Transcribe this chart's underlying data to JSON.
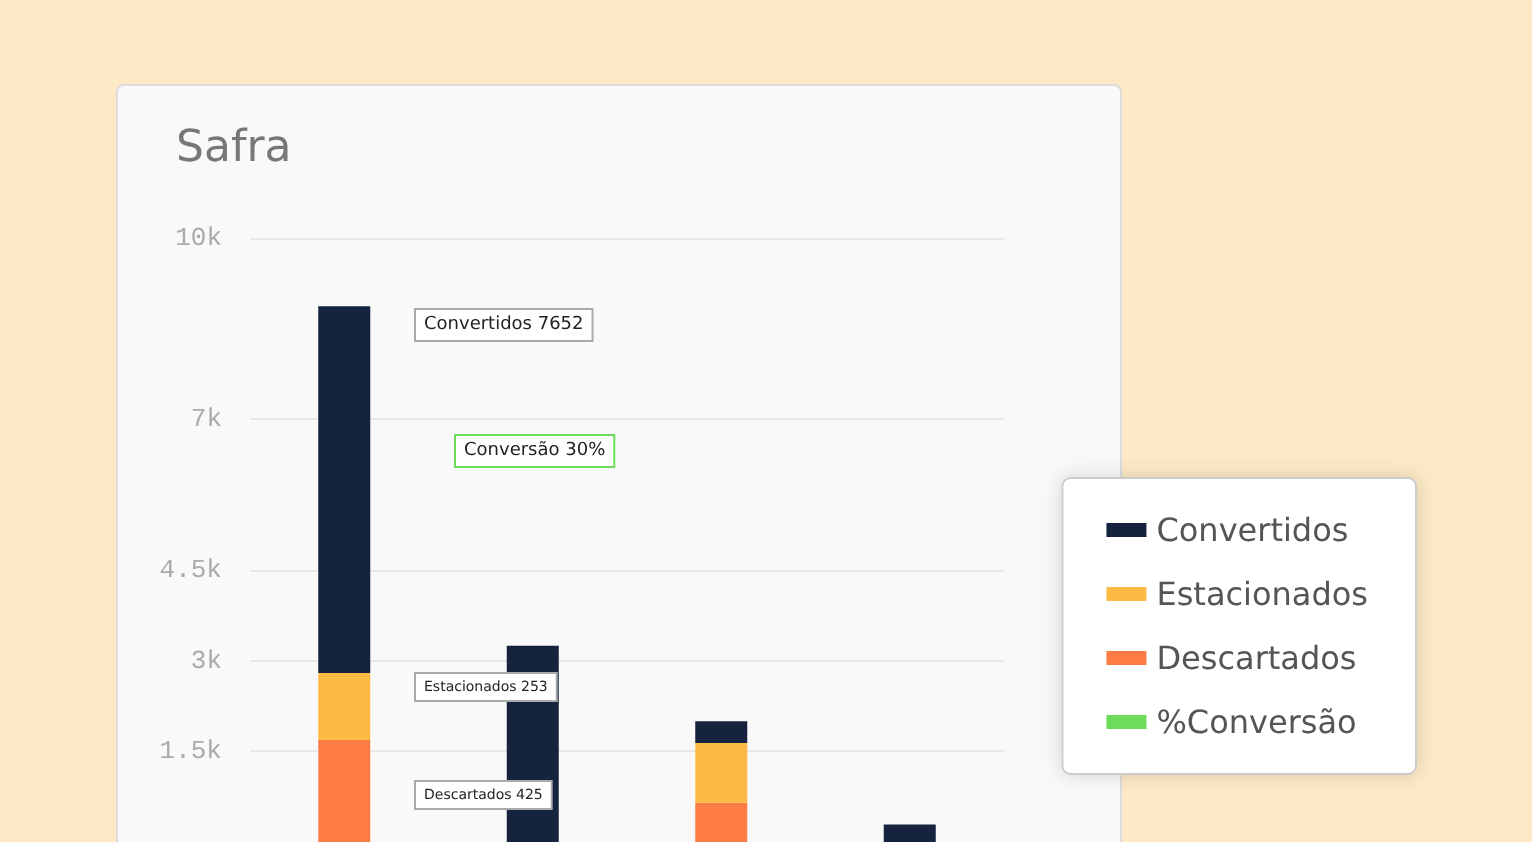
{
  "chart_data": {
    "type": "bar",
    "title": "Safra",
    "stacked": true,
    "categories": [
      null,
      null,
      null,
      null
    ],
    "series": [
      {
        "name": "Descartados",
        "color": "#fd7c46",
        "values": [
          1690,
          null,
          650,
          null
        ]
      },
      {
        "name": "Estacionados",
        "color": "#fdbb45",
        "values": [
          1110,
          null,
          990,
          null
        ]
      },
      {
        "name": "Convertidos",
        "color": "#15233e",
        "values": [
          6070,
          3250,
          360,
          290
        ]
      },
      {
        "name": "%Conversão",
        "color": "#6ddc5a",
        "values": [
          null,
          null,
          null,
          null
        ]
      }
    ],
    "ylim": [
      0,
      10000
    ],
    "yticks": [
      {
        "value": 1500,
        "label": "1.5k"
      },
      {
        "value": 3000,
        "label": "3k"
      },
      {
        "value": 4500,
        "label": "4.5k"
      },
      {
        "value": 7000,
        "label": "7k"
      },
      {
        "value": 10000,
        "label": "10k"
      }
    ],
    "grid": "y",
    "legend": "right",
    "tick_labels": "y",
    "annotations": [
      "Convertidos 7652",
      "Conversão 30%",
      "Estacionados 253",
      "Descartados 425"
    ]
  }
}
